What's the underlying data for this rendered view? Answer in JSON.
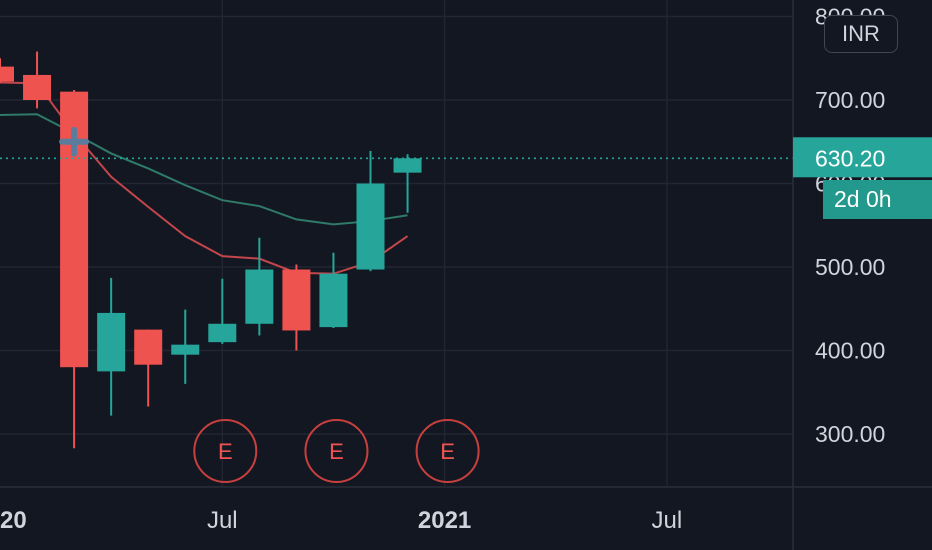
{
  "colors": {
    "background": "#131722",
    "up": "#26a69a",
    "down": "#ef5350",
    "ma_fast": "#c2464b",
    "ma_slow": "#2f7a68",
    "last_price_line": "#26a69a"
  },
  "currency_label": "INR",
  "last_price": {
    "label": "630.20",
    "value": 630.2
  },
  "countdown": {
    "label": "2d 0h"
  },
  "chart_data": {
    "type": "candlestick",
    "interval": "monthly",
    "y_axis": {
      "ticks": [
        "800.00",
        "700.00",
        "600.00",
        "500.00",
        "400.00",
        "300.00"
      ],
      "tick_values": [
        800,
        700,
        600,
        500,
        400,
        300
      ],
      "visible_range": [
        230,
        820
      ]
    },
    "x_axis": {
      "ticks": [
        {
          "label": "20",
          "month": "2020-01",
          "bold": true
        },
        {
          "label": "Jul",
          "month": "2020-07",
          "bold": false
        },
        {
          "label": "2021",
          "month": "2021-01",
          "bold": true
        },
        {
          "label": "Jul",
          "month": "2021-07",
          "bold": false
        }
      ]
    },
    "candles": [
      {
        "month": "2020-01",
        "open": 740,
        "high": 750,
        "low": 720,
        "close": 722
      },
      {
        "month": "2020-02",
        "open": 730,
        "high": 758,
        "low": 690,
        "close": 700
      },
      {
        "month": "2020-03",
        "open": 710,
        "high": 712,
        "low": 283,
        "close": 380
      },
      {
        "month": "2020-04",
        "open": 375,
        "high": 487,
        "low": 322,
        "close": 445
      },
      {
        "month": "2020-05",
        "open": 425,
        "high": 425,
        "low": 333,
        "close": 383
      },
      {
        "month": "2020-06",
        "open": 395,
        "high": 449,
        "low": 360,
        "close": 407
      },
      {
        "month": "2020-07",
        "open": 410,
        "high": 486,
        "low": 408,
        "close": 432
      },
      {
        "month": "2020-08",
        "open": 432,
        "high": 535,
        "low": 418,
        "close": 497
      },
      {
        "month": "2020-09",
        "open": 497,
        "high": 503,
        "low": 400,
        "close": 424
      },
      {
        "month": "2020-10",
        "open": 428,
        "high": 517,
        "low": 427,
        "close": 492
      },
      {
        "month": "2020-11",
        "open": 497,
        "high": 639,
        "low": 495,
        "close": 600
      },
      {
        "month": "2020-12",
        "open": 613,
        "high": 635,
        "low": 565,
        "close": 630.2
      }
    ],
    "moving_averages": [
      {
        "color_key": "ma_fast",
        "points": [
          {
            "month": "2020-01",
            "value": 721
          },
          {
            "month": "2020-02",
            "value": 720
          },
          {
            "month": "2020-03",
            "value": 660
          },
          {
            "month": "2020-04",
            "value": 608
          },
          {
            "month": "2020-05",
            "value": 572
          },
          {
            "month": "2020-06",
            "value": 537
          },
          {
            "month": "2020-07",
            "value": 513
          },
          {
            "month": "2020-08",
            "value": 510
          },
          {
            "month": "2020-09",
            "value": 493
          },
          {
            "month": "2020-10",
            "value": 492
          },
          {
            "month": "2020-11",
            "value": 506
          },
          {
            "month": "2020-12",
            "value": 537
          }
        ]
      },
      {
        "color_key": "ma_slow",
        "points": [
          {
            "month": "2019-12",
            "value": 681
          },
          {
            "month": "2020-01",
            "value": 682
          },
          {
            "month": "2020-02",
            "value": 683
          },
          {
            "month": "2020-03",
            "value": 660
          },
          {
            "month": "2020-04",
            "value": 636
          },
          {
            "month": "2020-05",
            "value": 618
          },
          {
            "month": "2020-06",
            "value": 598
          },
          {
            "month": "2020-07",
            "value": 580
          },
          {
            "month": "2020-08",
            "value": 573
          },
          {
            "month": "2020-09",
            "value": 557
          },
          {
            "month": "2020-10",
            "value": 551
          },
          {
            "month": "2020-11",
            "value": 555
          },
          {
            "month": "2020-12",
            "value": 562
          }
        ]
      }
    ],
    "events": [
      {
        "label": "E",
        "month": "2020-07"
      },
      {
        "label": "E",
        "month": "2020-10"
      },
      {
        "label": "E",
        "month": "2021-01"
      }
    ],
    "marker": {
      "month": "2020-03",
      "value": 650,
      "symbol": "+"
    }
  }
}
